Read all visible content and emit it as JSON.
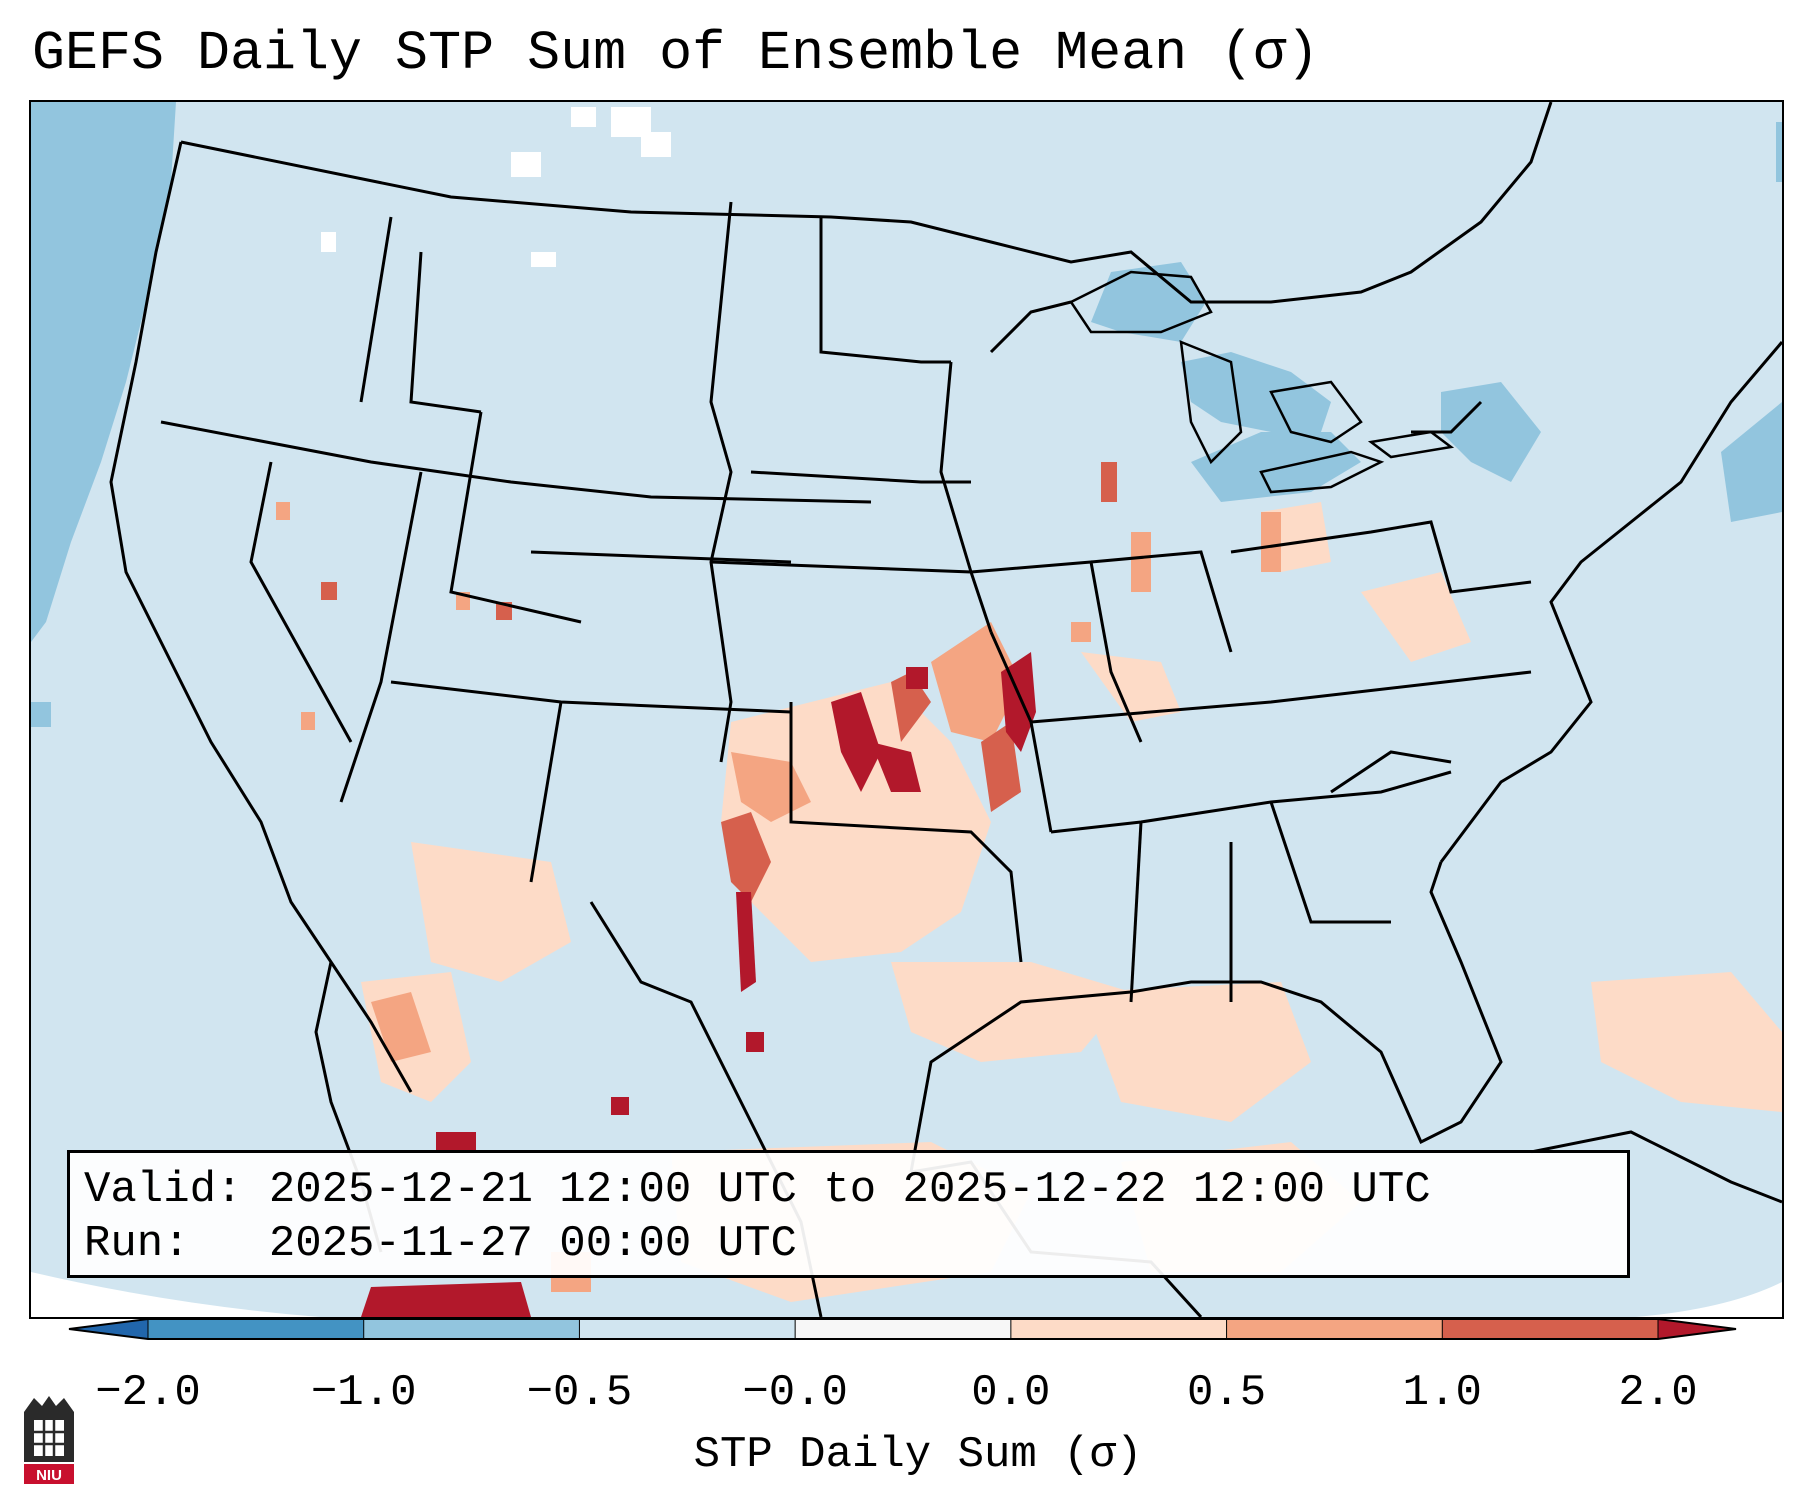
{
  "title": "GEFS Daily STP Sum of Ensemble Mean (σ)",
  "info": {
    "valid_label": "Valid:",
    "valid_value": "2025-12-21 12:00 UTC to 2025-12-22 12:00 UTC",
    "run_label": "Run:",
    "run_value": "2025-11-27 00:00 UTC"
  },
  "colorbar": {
    "label": "STP Daily Sum (σ)",
    "ticks": [
      "−2.0",
      "−1.0",
      "−0.5",
      "−0.0",
      "0.0",
      "0.5",
      "1.0",
      "2.0"
    ],
    "bins": [
      {
        "range": "< -2.0",
        "color": "#2166ac"
      },
      {
        "range": "-2.0 to -1.0",
        "color": "#4393c3"
      },
      {
        "range": "-1.0 to -0.5",
        "color": "#92c5de"
      },
      {
        "range": "-0.5 to -0.0",
        "color": "#d1e5f0"
      },
      {
        "range": "-0.0 to 0.0",
        "color": "#f7f7f7"
      },
      {
        "range": "0.0 to 0.5",
        "color": "#fddbc7"
      },
      {
        "range": "0.5 to 1.0",
        "color": "#f4a582"
      },
      {
        "range": "1.0 to 2.0",
        "color": "#d6604d"
      },
      {
        "range": "> 2.0",
        "color": "#b2182b"
      }
    ]
  },
  "map": {
    "background_color": "#d1e5f0",
    "outside_domain_color": "#ffffff",
    "border_color": "#000000"
  },
  "logo": {
    "text": "NIU"
  }
}
